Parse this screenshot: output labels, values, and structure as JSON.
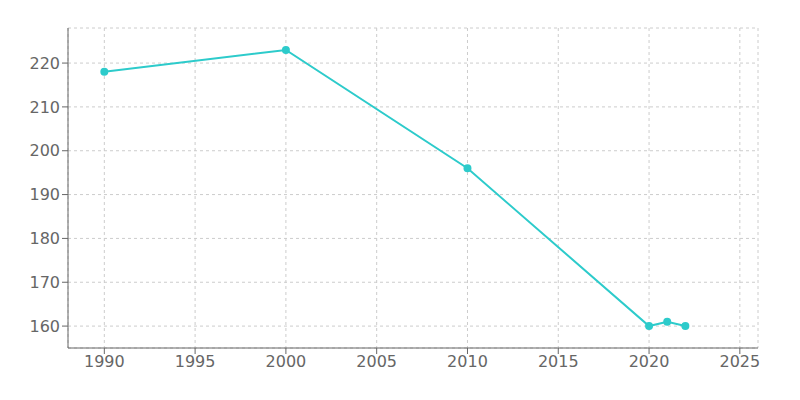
{
  "chart_data": {
    "type": "line",
    "x": [
      1990,
      2000,
      2010,
      2020,
      2021,
      2022
    ],
    "values": [
      218,
      223,
      196,
      160,
      161,
      160
    ],
    "color": "#2dcbcb",
    "marker": "circle",
    "xlim": [
      1988,
      2026
    ],
    "ylim": [
      155,
      228
    ],
    "xticks": [
      1990,
      1995,
      2000,
      2005,
      2010,
      2015,
      2020,
      2025
    ],
    "yticks": [
      160,
      170,
      180,
      190,
      200,
      210,
      220
    ],
    "grid": true
  }
}
